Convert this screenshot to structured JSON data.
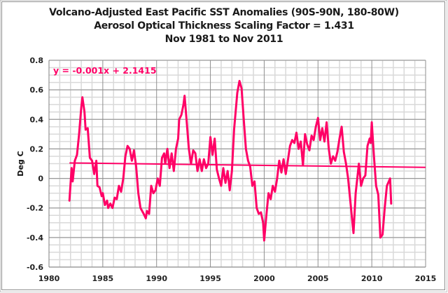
{
  "chart_data": {
    "type": "line",
    "title": "Volcano-Adjusted East Pacific SST Anomalies (90S-90N, 180-80W)",
    "subtitle_lines": [
      "Aerosol Optical Thickness Scaling Factor = 1.431",
      "Nov 1981 to Nov 2011"
    ],
    "xlabel": "",
    "ylabel": "Deg C",
    "xlim": [
      1980,
      2015
    ],
    "ylim": [
      -0.6,
      0.8
    ],
    "x_major_ticks": [
      1980,
      1985,
      1990,
      1995,
      2000,
      2005,
      2010,
      2015
    ],
    "x_tick_labels": [
      "1980",
      "1985",
      "1990",
      "1995",
      "2000",
      "2005",
      "2010",
      "2015"
    ],
    "y_major_ticks": [
      -0.6,
      -0.4,
      -0.2,
      0,
      0.2,
      0.4,
      0.6,
      0.8
    ],
    "y_tick_labels": [
      "-0.6",
      "-0.4",
      "-0.2",
      "0",
      "0.2",
      "0.4",
      "0.6",
      "0.8"
    ],
    "x_minor_step": 1,
    "y_minor_step": 0.05,
    "grid": true,
    "legend": "none",
    "series_color": "#ff0066",
    "series": [
      {
        "name": "Volcano-Adjusted East Pacific SST Anomalies",
        "x": [
          1981.9,
          1982.1,
          1982.2,
          1982.4,
          1982.6,
          1982.8,
          1983.0,
          1983.1,
          1983.3,
          1983.4,
          1983.6,
          1983.8,
          1984.0,
          1984.2,
          1984.4,
          1984.5,
          1984.7,
          1984.9,
          1985.0,
          1985.2,
          1985.4,
          1985.5,
          1985.7,
          1985.9,
          1986.1,
          1986.3,
          1986.5,
          1986.7,
          1986.9,
          1987.1,
          1987.3,
          1987.5,
          1987.7,
          1987.9,
          1988.1,
          1988.3,
          1988.5,
          1988.8,
          1989.0,
          1989.1,
          1989.3,
          1989.5,
          1989.7,
          1989.9,
          1990.1,
          1990.3,
          1990.5,
          1990.7,
          1990.8,
          1991.0,
          1991.2,
          1991.4,
          1991.6,
          1991.8,
          1992.0,
          1992.1,
          1992.3,
          1992.5,
          1992.6,
          1992.8,
          1993.0,
          1993.2,
          1993.4,
          1993.6,
          1993.8,
          1994.0,
          1994.2,
          1994.4,
          1994.6,
          1994.8,
          1995.0,
          1995.2,
          1995.4,
          1995.6,
          1995.8,
          1996.0,
          1996.2,
          1996.4,
          1996.6,
          1996.8,
          1997.0,
          1997.2,
          1997.5,
          1997.7,
          1997.9,
          1998.1,
          1998.3,
          1998.5,
          1998.7,
          1998.9,
          1999.1,
          1999.3,
          1999.5,
          1999.7,
          1999.9,
          2000.0,
          2000.2,
          2000.4,
          2000.6,
          2000.8,
          2001.0,
          2001.2,
          2001.4,
          2001.6,
          2001.8,
          2002.0,
          2002.2,
          2002.4,
          2002.6,
          2002.8,
          2003.0,
          2003.2,
          2003.4,
          2003.6,
          2003.8,
          2004.0,
          2004.2,
          2004.4,
          2004.6,
          2004.8,
          2005.0,
          2005.2,
          2005.4,
          2005.6,
          2005.8,
          2006.0,
          2006.2,
          2006.4,
          2006.6,
          2006.8,
          2007.0,
          2007.2,
          2007.4,
          2007.6,
          2007.8,
          2008.0,
          2008.2,
          2008.3,
          2008.5,
          2008.8,
          2009.0,
          2009.2,
          2009.4,
          2009.6,
          2009.8,
          2009.9,
          2010.0,
          2010.2,
          2010.4,
          2010.6,
          2010.8,
          2011.0,
          2011.2,
          2011.4,
          2011.7,
          2011.8
        ],
        "values": [
          -0.15,
          0.07,
          -0.02,
          0.12,
          0.16,
          0.3,
          0.48,
          0.55,
          0.45,
          0.33,
          0.34,
          0.14,
          0.12,
          0.03,
          0.12,
          -0.05,
          -0.06,
          -0.12,
          -0.1,
          -0.18,
          -0.15,
          -0.2,
          -0.17,
          -0.2,
          -0.13,
          -0.14,
          -0.05,
          -0.09,
          0.0,
          0.15,
          0.22,
          0.2,
          0.12,
          0.19,
          0.08,
          -0.1,
          -0.2,
          -0.24,
          -0.27,
          -0.22,
          -0.24,
          -0.05,
          -0.1,
          -0.08,
          0.0,
          -0.05,
          0.14,
          0.17,
          0.1,
          0.2,
          0.07,
          0.17,
          0.05,
          0.2,
          0.27,
          0.4,
          0.43,
          0.5,
          0.56,
          0.38,
          0.2,
          0.1,
          0.19,
          0.17,
          0.05,
          0.13,
          0.05,
          0.13,
          0.07,
          0.1,
          0.28,
          0.16,
          0.27,
          0.06,
          0.0,
          -0.05,
          0.07,
          -0.03,
          0.05,
          -0.08,
          0.05,
          0.33,
          0.58,
          0.66,
          0.61,
          0.4,
          0.2,
          0.12,
          0.08,
          -0.05,
          -0.02,
          -0.2,
          -0.24,
          -0.23,
          -0.3,
          -0.42,
          -0.25,
          -0.1,
          -0.14,
          -0.05,
          -0.09,
          0.0,
          0.12,
          0.04,
          0.13,
          0.03,
          0.12,
          0.22,
          0.26,
          0.24,
          0.31,
          0.2,
          0.25,
          0.09,
          0.3,
          0.23,
          0.19,
          0.29,
          0.26,
          0.35,
          0.41,
          0.26,
          0.34,
          0.25,
          0.38,
          0.2,
          0.1,
          0.15,
          0.12,
          0.18,
          0.27,
          0.35,
          0.18,
          0.1,
          0.0,
          -0.15,
          -0.3,
          -0.37,
          -0.1,
          0.1,
          -0.05,
          0.0,
          0.02,
          0.22,
          0.27,
          0.24,
          0.38,
          0.15,
          -0.05,
          -0.11,
          -0.4,
          -0.38,
          -0.2,
          -0.05,
          0.0,
          -0.17
        ]
      }
    ],
    "trendline": {
      "equation_label": "y = -0.001x + 2.1415",
      "slope": -0.001,
      "intercept": 2.1415,
      "x_start": 1981.9,
      "x_end": 2015,
      "y_start": 0.105,
      "y_end": 0.075
    }
  }
}
